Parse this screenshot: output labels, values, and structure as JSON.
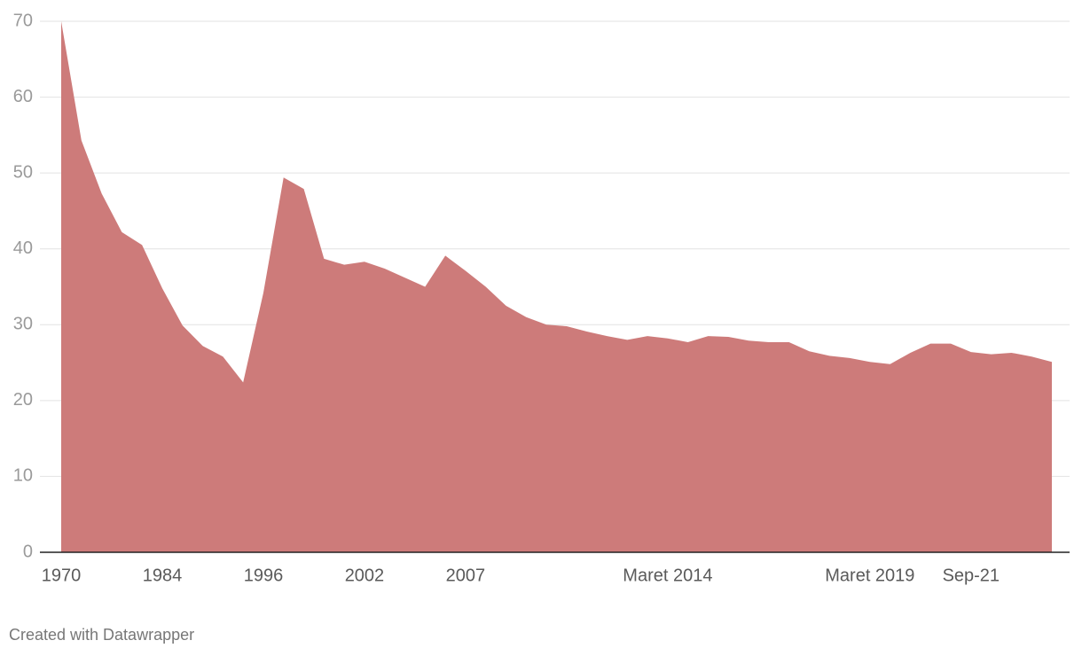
{
  "chart_data": {
    "type": "area",
    "categories": [
      "1970",
      null,
      null,
      null,
      null,
      "1984",
      null,
      null,
      null,
      null,
      "1996",
      null,
      null,
      null,
      null,
      "2002",
      null,
      null,
      null,
      null,
      "2007",
      null,
      null,
      null,
      null,
      null,
      null,
      null,
      null,
      null,
      "Maret 2014",
      null,
      null,
      null,
      null,
      null,
      null,
      null,
      null,
      null,
      "Maret 2019",
      null,
      null,
      null,
      null,
      "Sep-21",
      null,
      null,
      null,
      null
    ],
    "values": [
      70,
      54.3,
      47.3,
      42.2,
      40.5,
      34.8,
      29.9,
      27.2,
      25.8,
      22.4,
      34.2,
      49.4,
      47.9,
      38.7,
      37.9,
      38.3,
      37.4,
      36.2,
      35.0,
      39.1,
      37.1,
      35.0,
      32.5,
      31.0,
      30.0,
      29.8,
      29.1,
      28.5,
      28.0,
      28.5,
      28.2,
      27.7,
      28.5,
      28.4,
      27.9,
      27.7,
      27.7,
      26.5,
      25.9,
      25.6,
      25.1,
      24.8,
      26.3,
      27.5,
      27.5,
      26.4,
      26.1,
      26.3,
      25.8,
      25.1
    ],
    "color": "#cd7b7a",
    "ylim": [
      0,
      70
    ],
    "yticks": [
      0,
      10,
      20,
      30,
      40,
      50,
      60,
      70
    ],
    "grid": true,
    "footer": "Created with Datawrapper"
  }
}
